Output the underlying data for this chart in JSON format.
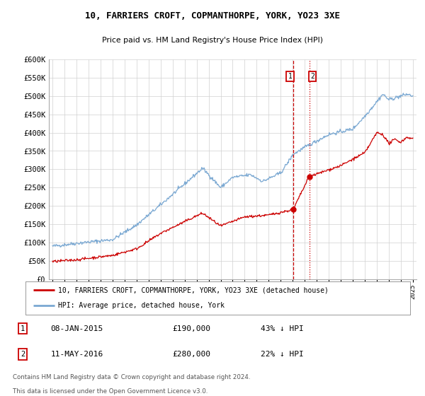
{
  "title": "10, FARRIERS CROFT, COPMANTHORPE, YORK, YO23 3XE",
  "subtitle": "Price paid vs. HM Land Registry's House Price Index (HPI)",
  "legend1": "10, FARRIERS CROFT, COPMANTHORPE, YORK, YO23 3XE (detached house)",
  "legend2": "HPI: Average price, detached house, York",
  "footnote1": "Contains HM Land Registry data © Crown copyright and database right 2024.",
  "footnote2": "This data is licensed under the Open Government Licence v3.0.",
  "red_color": "#cc0000",
  "blue_color": "#7aa8d2",
  "vline1_x": 2015.03,
  "vline2_x": 2016.37,
  "point1_x": 2015.03,
  "point1_y": 190000,
  "point2_x": 2016.37,
  "point2_y": 280000,
  "label1_date": "08-JAN-2015",
  "label1_price": "£190,000",
  "label1_hpi": "43% ↓ HPI",
  "label2_date": "11-MAY-2016",
  "label2_price": "£280,000",
  "label2_hpi": "22% ↓ HPI",
  "ylim": [
    0,
    600000
  ],
  "yticks": [
    0,
    50000,
    100000,
    150000,
    200000,
    250000,
    300000,
    350000,
    400000,
    450000,
    500000,
    550000,
    600000
  ],
  "xlim_start": 1994.7,
  "xlim_end": 2025.3,
  "background_color": "#ffffff",
  "plot_bg_color": "#ffffff",
  "grid_color": "#d0d0d0"
}
